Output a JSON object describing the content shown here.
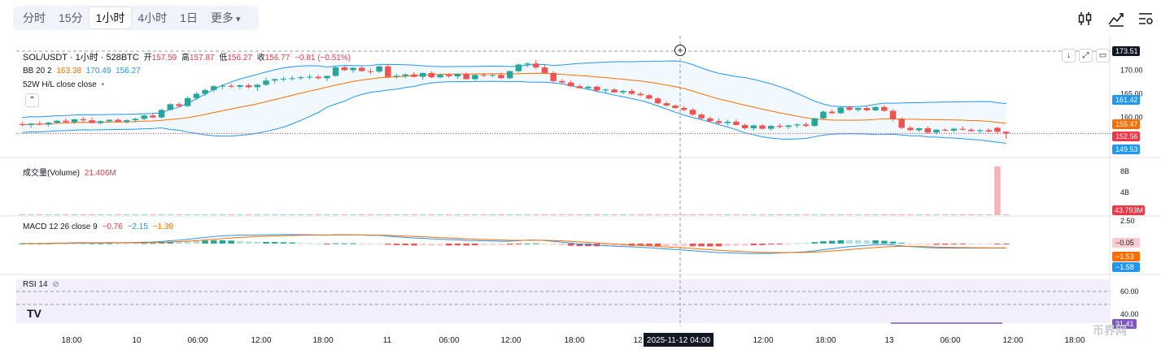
{
  "toolbar": {
    "timeframes": [
      "分时",
      "15分",
      "1小时",
      "4小时",
      "1日",
      "更多"
    ],
    "active": "1小时"
  },
  "legend": {
    "symbol": "SOL/USDT · 1小时 · 528BTC",
    "open_label": "开",
    "open": "157.59",
    "high_label": "高",
    "high": "157.87",
    "low_label": "低",
    "low": "156.27",
    "close_label": "收",
    "close": "156.77",
    "change": "−0.81 (−0.51%)",
    "bb_name": "BB 20 2",
    "bb_mid": "163.38",
    "bb_up": "170.49",
    "bb_low": "156.27",
    "hl_name": "52W H/L close close",
    "volume_name": "成交量(Volume)",
    "volume_value": "21.406M",
    "macd_name": "MACD 12 26 close 9",
    "macd_hist": "−0.76",
    "macd_line": "−2.15",
    "macd_signal": "−1.39",
    "rsi_name": "RSI 14"
  },
  "price_axis": {
    "ticks": [
      "170.00",
      "165.00",
      "160.00"
    ],
    "badges": [
      {
        "text": "173.51",
        "bg": "#131722",
        "fg": "#ffffff"
      },
      {
        "text": "161.42",
        "bg": "#2196f3",
        "fg": "#ffffff"
      },
      {
        "text": "155.47",
        "bg": "#ff6d00",
        "fg": "#ffffff"
      },
      {
        "text": "152.56",
        "bg": "#f23645",
        "fg": "#ffffff"
      },
      {
        "text": "149.53",
        "bg": "#2196f3",
        "fg": "#ffffff"
      }
    ]
  },
  "volume_axis": {
    "ticks": [
      "8B",
      "4B"
    ],
    "badge": {
      "text": "43.793M",
      "bg": "#f23645",
      "fg": "#ffffff"
    }
  },
  "macd_axis": {
    "ticks": [
      "2.50"
    ],
    "badges": [
      {
        "text": "−0.05",
        "bg": "#fccbcd",
        "fg": "#131722"
      },
      {
        "text": "−1.53",
        "bg": "#ff6d00",
        "fg": "#ffffff"
      },
      {
        "text": "−1.58",
        "bg": "#2196f3",
        "fg": "#ffffff"
      }
    ]
  },
  "rsi_axis": {
    "ticks": [
      "60.00",
      "40.00"
    ],
    "badge": {
      "text": "31.41",
      "bg": "#7e57c2",
      "fg": "#ffffff"
    }
  },
  "time_axis": [
    "18:00",
    "10",
    "06:00",
    "12:00",
    "18:00",
    "11",
    "06:00",
    "12:00",
    "18:00",
    "12",
    "12:00",
    "18:00",
    "13",
    "06:00",
    "12:00",
    "18:00"
  ],
  "crosshair_time": "2025-11-12  04:00",
  "watermark": "币界网",
  "colors": {
    "up": "#26a69a",
    "down": "#ef5350",
    "bb_band": "#2196f3",
    "bb_mid": "#ff6d00",
    "rsi": "#7e57c2"
  },
  "chart_data": {
    "type": "candlestick",
    "interval": "1h",
    "symbol": "SOL/USDT",
    "x_labels": [
      "18:00",
      "10",
      "06:00",
      "12:00",
      "18:00",
      "11",
      "06:00",
      "12:00",
      "18:00",
      "12",
      "12:00",
      "18:00",
      "13",
      "06:00",
      "12:00",
      "18:00"
    ],
    "candles": [
      [
        158.4,
        158.9,
        157.8,
        158.2
      ],
      [
        158.2,
        158.6,
        157.6,
        158.5
      ],
      [
        158.5,
        159.0,
        158.1,
        158.3
      ],
      [
        158.3,
        158.8,
        157.9,
        158.7
      ],
      [
        158.7,
        159.2,
        158.4,
        159.1
      ],
      [
        159.1,
        159.6,
        158.5,
        158.8
      ],
      [
        158.8,
        159.5,
        158.4,
        159.4
      ],
      [
        159.4,
        159.9,
        158.9,
        159.2
      ],
      [
        159.2,
        159.8,
        158.6,
        158.6
      ],
      [
        158.6,
        159.2,
        158.3,
        159.0
      ],
      [
        159.0,
        159.4,
        158.7,
        159.3
      ],
      [
        159.3,
        159.6,
        158.8,
        158.9
      ],
      [
        158.9,
        159.4,
        158.5,
        159.2
      ],
      [
        159.2,
        159.7,
        158.8,
        159.5
      ],
      [
        159.5,
        160.4,
        159.2,
        160.2
      ],
      [
        160.2,
        160.8,
        159.6,
        159.8
      ],
      [
        159.8,
        161.6,
        159.6,
        161.4
      ],
      [
        161.4,
        162.8,
        161.2,
        162.6
      ],
      [
        162.6,
        163.0,
        161.9,
        162.2
      ],
      [
        162.2,
        164.2,
        162.0,
        163.9
      ],
      [
        163.9,
        165.2,
        163.5,
        164.8
      ],
      [
        164.8,
        165.9,
        164.4,
        165.6
      ],
      [
        165.6,
        166.6,
        165.1,
        166.4
      ],
      [
        166.4,
        166.8,
        165.8,
        166.5
      ],
      [
        166.5,
        166.9,
        166.0,
        166.3
      ],
      [
        166.3,
        166.8,
        165.8,
        166.6
      ],
      [
        166.6,
        167.0,
        165.9,
        166.2
      ],
      [
        166.2,
        166.9,
        165.4,
        166.7
      ],
      [
        166.7,
        168.2,
        166.5,
        167.6
      ],
      [
        167.6,
        168.0,
        167.0,
        167.9
      ],
      [
        167.9,
        168.4,
        167.4,
        168.0
      ],
      [
        168.0,
        168.6,
        167.6,
        168.1
      ],
      [
        168.1,
        168.6,
        167.7,
        168.3
      ],
      [
        168.3,
        168.9,
        167.9,
        168.4
      ],
      [
        168.4,
        168.8,
        167.8,
        168.1
      ],
      [
        168.1,
        168.5,
        167.5,
        168.6
      ],
      [
        168.6,
        170.6,
        168.4,
        170.4
      ],
      [
        170.4,
        170.7,
        169.6,
        169.8
      ],
      [
        169.8,
        170.4,
        169.2,
        170.3
      ],
      [
        170.3,
        170.6,
        169.5,
        169.6
      ],
      [
        169.6,
        170.2,
        169.0,
        169.5
      ],
      [
        169.5,
        170.8,
        169.2,
        170.6
      ],
      [
        170.6,
        171.0,
        168.1,
        168.4
      ],
      [
        168.4,
        169.0,
        168.0,
        168.6
      ],
      [
        168.6,
        169.1,
        168.1,
        168.9
      ],
      [
        168.9,
        169.4,
        168.3,
        168.4
      ],
      [
        168.4,
        169.3,
        167.8,
        169.2
      ],
      [
        169.2,
        169.6,
        168.1,
        168.3
      ],
      [
        168.3,
        169.1,
        168.0,
        168.8
      ],
      [
        168.8,
        169.2,
        168.2,
        168.5
      ],
      [
        168.5,
        169.1,
        168.0,
        169.0
      ],
      [
        169.0,
        169.4,
        167.8,
        167.9
      ],
      [
        167.9,
        168.9,
        167.6,
        168.8
      ],
      [
        168.8,
        169.2,
        168.4,
        168.7
      ],
      [
        168.7,
        169.0,
        168.3,
        168.8
      ],
      [
        168.8,
        169.3,
        168.0,
        168.1
      ],
      [
        168.1,
        169.7,
        167.9,
        169.6
      ],
      [
        169.6,
        171.2,
        169.3,
        171.0
      ],
      [
        171.0,
        171.5,
        170.4,
        171.2
      ],
      [
        171.2,
        171.9,
        170.0,
        170.4
      ],
      [
        170.4,
        170.9,
        169.1,
        169.2
      ],
      [
        169.2,
        169.6,
        167.2,
        167.5
      ],
      [
        167.5,
        167.9,
        166.9,
        167.2
      ],
      [
        167.2,
        167.7,
        166.2,
        166.4
      ],
      [
        166.4,
        166.8,
        165.9,
        166.0
      ],
      [
        166.0,
        166.5,
        165.6,
        166.3
      ],
      [
        166.3,
        166.6,
        165.3,
        165.5
      ],
      [
        165.5,
        165.9,
        165.0,
        165.7
      ],
      [
        165.7,
        166.0,
        165.0,
        165.1
      ],
      [
        165.1,
        165.6,
        164.7,
        165.4
      ],
      [
        165.4,
        165.8,
        164.6,
        164.8
      ],
      [
        164.8,
        165.2,
        164.2,
        164.5
      ],
      [
        164.5,
        164.8,
        163.6,
        163.8
      ],
      [
        163.8,
        164.1,
        162.6,
        162.8
      ],
      [
        162.8,
        163.2,
        162.1,
        162.3
      ],
      [
        162.3,
        162.6,
        161.6,
        161.8
      ],
      [
        161.8,
        162.2,
        161.1,
        161.4
      ],
      [
        161.4,
        161.8,
        160.1,
        160.4
      ],
      [
        160.4,
        160.7,
        159.4,
        159.6
      ],
      [
        159.6,
        160.0,
        158.8,
        159.0
      ],
      [
        159.0,
        159.6,
        158.2,
        158.6
      ],
      [
        158.6,
        159.3,
        158.1,
        158.9
      ],
      [
        158.9,
        159.4,
        158.1,
        158.2
      ],
      [
        158.2,
        158.5,
        157.2,
        157.5
      ],
      [
        157.5,
        158.3,
        157.0,
        158.1
      ],
      [
        158.1,
        158.4,
        157.2,
        157.4
      ],
      [
        157.4,
        158.2,
        157.0,
        158.0
      ],
      [
        158.0,
        158.5,
        157.5,
        157.8
      ],
      [
        157.8,
        158.3,
        157.3,
        158.1
      ],
      [
        158.1,
        158.6,
        157.6,
        158.3
      ],
      [
        158.3,
        158.7,
        157.8,
        158.0
      ],
      [
        158.0,
        159.8,
        157.8,
        159.6
      ],
      [
        159.6,
        161.3,
        159.4,
        161.0
      ],
      [
        161.0,
        161.4,
        160.5,
        160.7
      ],
      [
        160.7,
        162.1,
        160.5,
        161.9
      ],
      [
        161.9,
        162.3,
        161.2,
        161.4
      ],
      [
        161.4,
        161.9,
        161.0,
        161.8
      ],
      [
        161.8,
        162.2,
        161.1,
        161.3
      ],
      [
        161.3,
        162.2,
        161.1,
        162.0
      ],
      [
        162.0,
        162.4,
        161.0,
        161.2
      ],
      [
        161.2,
        161.6,
        159.0,
        159.4
      ],
      [
        159.4,
        159.8,
        157.3,
        157.6
      ],
      [
        157.6,
        158.0,
        156.9,
        157.1
      ],
      [
        157.1,
        157.6,
        156.7,
        157.5
      ],
      [
        157.5,
        157.9,
        156.4,
        156.6
      ],
      [
        156.6,
        157.3,
        156.2,
        157.2
      ],
      [
        157.2,
        157.5,
        156.8,
        157.0
      ],
      [
        157.0,
        157.6,
        156.7,
        157.4
      ],
      [
        157.4,
        157.9,
        157.0,
        157.2
      ],
      [
        157.2,
        157.6,
        156.7,
        156.9
      ],
      [
        156.9,
        157.3,
        156.5,
        157.1
      ],
      [
        157.1,
        157.5,
        156.6,
        156.8
      ],
      [
        157.59,
        157.87,
        156.27,
        156.77
      ],
      [
        156.77,
        156.9,
        155.3,
        156.4
      ]
    ],
    "bollinger": {
      "period": 20,
      "mult": 2,
      "basis": 163.38,
      "upper": 170.49,
      "lower": 156.27
    },
    "volume": {
      "last": "21.406M",
      "spike_value": "8.9B",
      "axis_ticks": [
        "8B",
        "4B"
      ]
    },
    "macd": {
      "fast": 12,
      "slow": 26,
      "signal": 9,
      "histogram": -0.76,
      "macd": -2.15,
      "signal_value": -1.39
    },
    "rsi": {
      "period": 14,
      "value": 31.41,
      "levels": [
        60,
        40
      ]
    },
    "y_range": [
      152,
      174
    ]
  }
}
